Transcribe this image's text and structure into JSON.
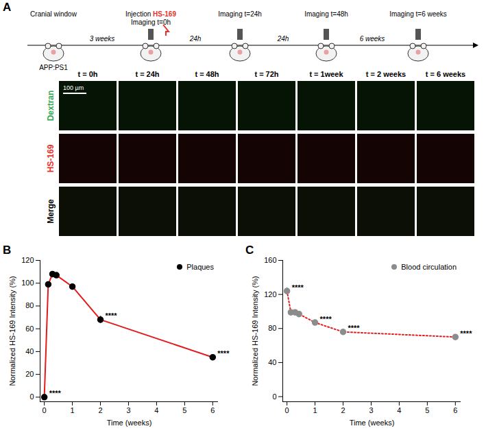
{
  "panel_a": {
    "title": "A",
    "timeline": {
      "labels": [
        "Cranial window",
        "Imaging t=0h",
        "Imaging t=24h",
        "Imaging t=48h",
        "Imaging t=6 weeks"
      ],
      "injection": "Injection",
      "agent": "HS-169",
      "agent_color": "#e8312a",
      "intervals": [
        "3 weeks",
        "24h",
        "24h",
        "6 weeks"
      ],
      "mouse": "APP:PS1"
    },
    "columns": [
      "t = 0h",
      "t = 24h",
      "t = 48h",
      "t = 72h",
      "t = 1week",
      "t = 2 weeks",
      "t = 6 weeks"
    ],
    "rows": [
      {
        "label": "Dextran",
        "color": "#2fa84f"
      },
      {
        "label": "HS-169",
        "color": "#e8312a"
      },
      {
        "label": "Merge",
        "color": "#000000"
      }
    ],
    "scale_bar": "100 µm"
  },
  "chart_data": [
    {
      "type": "line",
      "title": "B",
      "x_label": "Time (weeks)",
      "y_label": "Normalized HS-169 Intensity (%)",
      "x": [
        0,
        0.14,
        0.29,
        0.43,
        1,
        2,
        6
      ],
      "xlim": [
        -0.15,
        6.2
      ],
      "xticks": [
        0,
        1,
        2,
        3,
        4,
        5,
        6
      ],
      "ylim": [
        -4,
        120
      ],
      "yticks": [
        0,
        20,
        40,
        60,
        80,
        100,
        120
      ],
      "legend": "top-right",
      "series": [
        {
          "name": "Plaques",
          "color": "#000000",
          "marker": "circle",
          "line_style": "solid",
          "values": [
            0,
            99,
            108,
            107,
            97,
            68,
            35
          ],
          "errors": [
            0.5,
            1,
            1.5,
            1.5,
            1.5,
            3,
            1.5
          ]
        }
      ],
      "annotations": [
        {
          "x": 0,
          "y": 0,
          "text": "****"
        },
        {
          "x": 2,
          "y": 68,
          "text": "****"
        },
        {
          "x": 6,
          "y": 35,
          "text": "****"
        }
      ]
    },
    {
      "type": "line",
      "title": "C",
      "x_label": "Time (weeks)",
      "y_label": "Normalized HS-169 Intensity (%)",
      "x": [
        0,
        0.14,
        0.29,
        0.43,
        1,
        2,
        6
      ],
      "xlim": [
        -0.15,
        6.2
      ],
      "xticks": [
        0,
        1,
        2,
        3,
        4,
        5,
        6
      ],
      "ylim": [
        -6,
        160
      ],
      "yticks": [
        0,
        40,
        80,
        120,
        160
      ],
      "legend": "top-right",
      "series": [
        {
          "name": "Blood circulation",
          "color": "#8c8c8c",
          "marker": "circle",
          "line_style": "dotted",
          "values": [
            124,
            99,
            99,
            97,
            87,
            76,
            70
          ],
          "errors": [
            4,
            2,
            2,
            2,
            2,
            2,
            3
          ]
        }
      ],
      "annotations": [
        {
          "x": 0,
          "y": 124,
          "text": "****"
        },
        {
          "x": 1,
          "y": 87,
          "text": "****"
        },
        {
          "x": 2,
          "y": 76,
          "text": "****"
        },
        {
          "x": 6,
          "y": 70,
          "text": "****"
        }
      ]
    }
  ]
}
